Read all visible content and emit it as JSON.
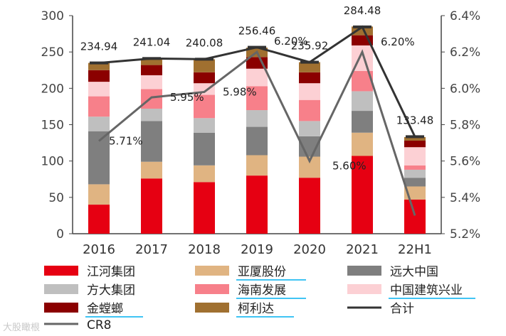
{
  "chart_data": {
    "type": "bar",
    "stacked": true,
    "categories": [
      "2016",
      "2017",
      "2018",
      "2019",
      "2020",
      "2021",
      "22H1"
    ],
    "ylim_left": [
      0,
      300
    ],
    "yticks_left": [
      "0",
      "50",
      "100",
      "150",
      "200",
      "250",
      "300"
    ],
    "ylim_right": [
      5.2,
      6.4
    ],
    "yticks_right": [
      "5.2%",
      "5.4%",
      "5.6%",
      "5.8%",
      "6.0%",
      "6.2%",
      "6.4%"
    ],
    "series": [
      {
        "name": "江河集团",
        "color": "#e60012",
        "values": [
          40,
          76,
          71,
          80,
          77,
          107,
          47
        ]
      },
      {
        "name": "亚厦股份",
        "color": "#e0b482",
        "values": [
          28,
          23,
          23,
          28,
          29,
          32,
          18
        ]
      },
      {
        "name": "远大中国",
        "color": "#7f7f7f",
        "values": [
          73,
          56,
          45,
          39,
          28,
          30,
          12
        ]
      },
      {
        "name": "方大集团",
        "color": "#bfbfbf",
        "values": [
          20,
          17,
          20,
          23,
          21,
          27,
          11
        ]
      },
      {
        "name": "海南发展",
        "color": "#f7808a",
        "values": [
          28,
          27,
          32,
          33,
          29,
          28,
          6
        ]
      },
      {
        "name": "中国建筑兴业",
        "color": "#fcd0d4",
        "values": [
          20,
          19,
          16,
          24,
          23,
          35,
          25
        ]
      },
      {
        "name": "金螳螂",
        "color": "#8b0000",
        "values": [
          16,
          14,
          15,
          16,
          15,
          14,
          9
        ]
      },
      {
        "name": "柯利达",
        "color": "#a07030",
        "values": [
          10,
          9,
          18,
          13,
          14,
          12,
          5
        ]
      }
    ],
    "totals": [
      234.94,
      241.04,
      240.08,
      256.46,
      235.92,
      284.48,
      133.48
    ],
    "total_labels": [
      "234.94",
      "241.04",
      "240.08",
      "256.46",
      "235.92",
      "284.48",
      "133.48"
    ],
    "total_series_name": "合计",
    "cr8": {
      "name": "CR8",
      "values": [
        5.71,
        5.95,
        5.98,
        6.2,
        5.6,
        6.2,
        5.3
      ],
      "point_labels": [
        "5.71%",
        "5.95%",
        "5.98%",
        "6.20%",
        "5.60%",
        "6.20%",
        ""
      ]
    },
    "colors": {
      "total_line": "#333333",
      "cr8_line": "#666666",
      "axis": "#444444",
      "underline": "#00b0f0"
    }
  },
  "watermark": "大股瞰根"
}
